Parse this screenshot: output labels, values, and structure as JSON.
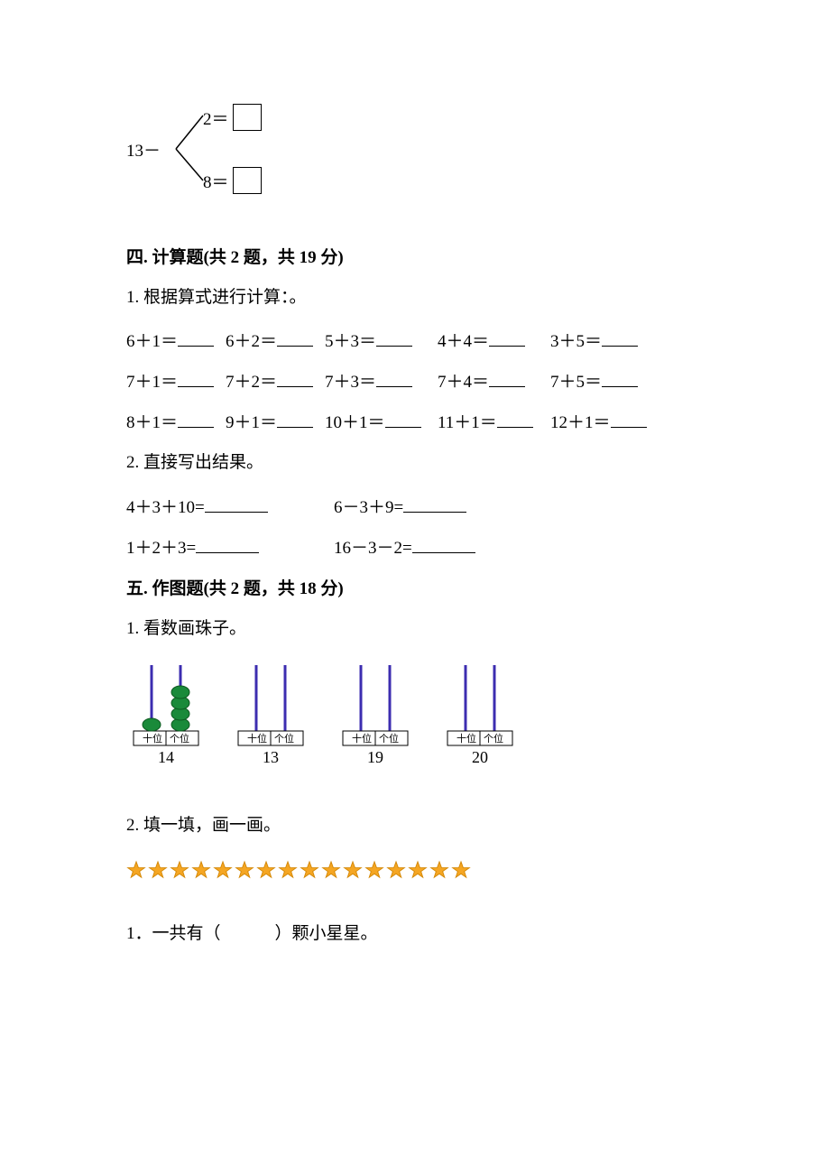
{
  "branch": {
    "root": "13－",
    "top_label": "2＝",
    "bottom_label": "8＝"
  },
  "section4": {
    "title": "四. 计算题(共 2 题，共 19 分)",
    "q1_prompt": "1. 根据算式进行计算：。",
    "q1_rows": [
      [
        "6＋1＝",
        "6＋2＝",
        "5＋3＝",
        "4＋4＝",
        "3＋5＝"
      ],
      [
        "7＋1＝",
        "7＋2＝",
        "7＋3＝",
        "7＋4＝",
        "7＋5＝"
      ],
      [
        "8＋1＝",
        "9＋1＝",
        "10＋1＝",
        "11＋1＝",
        "12＋1＝"
      ]
    ],
    "q2_prompt": "2. 直接写出结果。",
    "q2_rows": [
      [
        "4＋3＋10=",
        "6－3＋9="
      ],
      [
        "1＋2＋3=",
        "16－3－2="
      ]
    ]
  },
  "section5": {
    "title": "五. 作图题(共 2 题，共 18 分)",
    "q1_prompt": "1. 看数画珠子。",
    "abacus": {
      "tens_label": "十位",
      "ones_label": "个位",
      "rod_color": "#3c2db0",
      "bead_fill": "#1a8a3a",
      "bead_stroke": "#0d5a20",
      "items": [
        {
          "number": "14",
          "tens_beads": 1,
          "ones_beads": 4
        },
        {
          "number": "13",
          "tens_beads": 0,
          "ones_beads": 0
        },
        {
          "number": "19",
          "tens_beads": 0,
          "ones_beads": 0
        },
        {
          "number": "20",
          "tens_beads": 0,
          "ones_beads": 0
        }
      ]
    },
    "q2_prompt": "2. 填一填，画一画。",
    "stars": {
      "count": 16,
      "fill": "#f5a623",
      "stroke": "#d48806"
    },
    "sub1": "1．一共有（",
    "sub1_after": "）颗小星星。"
  }
}
